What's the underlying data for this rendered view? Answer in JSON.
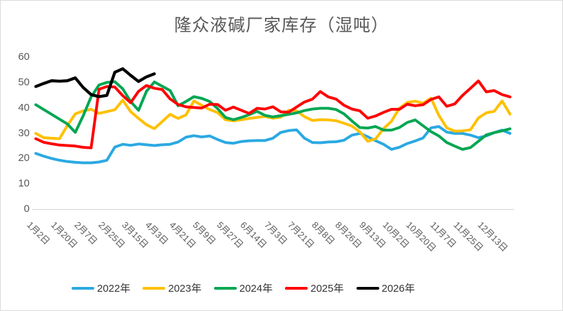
{
  "chart_data": {
    "type": "line",
    "title": "隆众液碱厂家库存（湿吨）",
    "xlabel": "",
    "ylabel": "",
    "ylim": [
      0,
      60
    ],
    "y_ticks": [
      0,
      10,
      20,
      30,
      40,
      50,
      60
    ],
    "grid": false,
    "legend_position": "bottom",
    "x_labels": [
      "1月2日",
      "1月20日",
      "2月7日",
      "2月25日",
      "3月15日",
      "4月3日",
      "4月21日",
      "5月9日",
      "5月27日",
      "6月14日",
      "7月3日",
      "7月21日",
      "8月8日",
      "8月26日",
      "9月13日",
      "10月2日",
      "10月20日",
      "11月7日",
      "11月25日",
      "12月13日"
    ],
    "series": [
      {
        "name": "2022年",
        "color": "#2BA9E2",
        "values": [
          22.0,
          20.9,
          20.0,
          19.3,
          18.8,
          18.5,
          18.3,
          18.3,
          18.6,
          19.3,
          24.5,
          25.6,
          25.2,
          25.7,
          25.4,
          25.1,
          25.4,
          25.6,
          26.5,
          28.4,
          29.0,
          28.5,
          28.9,
          27.5,
          26.3,
          26.0,
          26.7,
          27.0,
          27.1,
          27.1,
          28.0,
          30.3,
          31.0,
          31.3,
          28.0,
          26.3,
          26.2,
          26.5,
          26.6,
          27.2,
          29.2,
          29.9,
          28.6,
          27.0,
          25.6,
          23.6,
          24.4,
          25.9,
          26.9,
          28.1,
          32.1,
          32.6,
          30.4,
          29.9,
          29.9,
          29.2,
          28.2,
          28.9,
          30.2,
          31.2,
          29.9
        ]
      },
      {
        "name": "2023年",
        "color": "#FFC000",
        "values": [
          29.9,
          28.2,
          28.0,
          27.8,
          33.0,
          37.6,
          38.8,
          39.4,
          37.8,
          38.5,
          39.2,
          43.0,
          38.5,
          35.8,
          33.3,
          31.8,
          34.6,
          37.4,
          35.8,
          37.2,
          42.7,
          41.0,
          39.3,
          38.1,
          35.3,
          34.9,
          35.3,
          35.8,
          36.2,
          36.6,
          35.9,
          36.3,
          39.0,
          38.8,
          36.5,
          35.0,
          35.3,
          35.2,
          34.9,
          33.9,
          32.8,
          30.5,
          26.8,
          27.8,
          31.8,
          34.7,
          39.8,
          42.1,
          42.6,
          41.8,
          43.8,
          37.0,
          32.1,
          30.8,
          30.9,
          31.3,
          36.0,
          38.0,
          38.6,
          42.7,
          37.5
        ]
      },
      {
        "name": "2024年",
        "color": "#00A651",
        "values": [
          41.2,
          39.3,
          37.4,
          35.5,
          33.6,
          30.3,
          36.9,
          44.3,
          49.0,
          50.0,
          50.3,
          47.5,
          42.5,
          39.0,
          46.5,
          50.2,
          48.5,
          46.8,
          40.8,
          42.5,
          44.4,
          43.7,
          42.5,
          39.7,
          36.2,
          35.3,
          36.2,
          37.3,
          38.6,
          37.0,
          36.4,
          36.9,
          37.4,
          38.0,
          38.9,
          39.5,
          39.8,
          39.8,
          39.3,
          37.6,
          34.8,
          32.2,
          32.0,
          32.6,
          31.2,
          31.2,
          32.2,
          34.2,
          35.2,
          32.9,
          30.6,
          28.9,
          26.3,
          24.9,
          23.6,
          24.3,
          26.8,
          29.3,
          30.2,
          30.9,
          31.7
        ]
      },
      {
        "name": "2025年",
        "color": "#FF0000",
        "values": [
          27.8,
          26.4,
          25.8,
          25.3,
          25.1,
          24.9,
          24.4,
          24.2,
          47.3,
          48.4,
          48.2,
          44.8,
          42.0,
          46.5,
          48.8,
          47.7,
          47.2,
          43.5,
          41.3,
          40.4,
          40.1,
          39.9,
          41.4,
          41.3,
          39.0,
          40.3,
          39.0,
          37.8,
          39.8,
          39.5,
          40.4,
          38.4,
          38.3,
          40.3,
          42.3,
          43.4,
          46.4,
          44.3,
          43.4,
          41.0,
          39.5,
          38.8,
          35.9,
          36.8,
          38.2,
          39.4,
          39.4,
          41.4,
          40.8,
          41.2,
          43.3,
          44.3,
          40.6,
          41.5,
          44.9,
          47.7,
          50.6,
          46.3,
          46.8,
          45.2,
          44.3
        ]
      },
      {
        "name": "2026年",
        "color": "#000000",
        "values": [
          48.4,
          49.6,
          50.7,
          50.5,
          50.7,
          51.8,
          48.0,
          45.2,
          44.4,
          44.9,
          54.0,
          55.4,
          52.8,
          50.4,
          52.2,
          53.4
        ]
      }
    ]
  },
  "styles": {
    "title_color": "#595959",
    "axis_text_color": "#595959",
    "legend_text_color": "#333333",
    "axis_line_color": "#d9d9d9",
    "background": "#ffffff"
  }
}
